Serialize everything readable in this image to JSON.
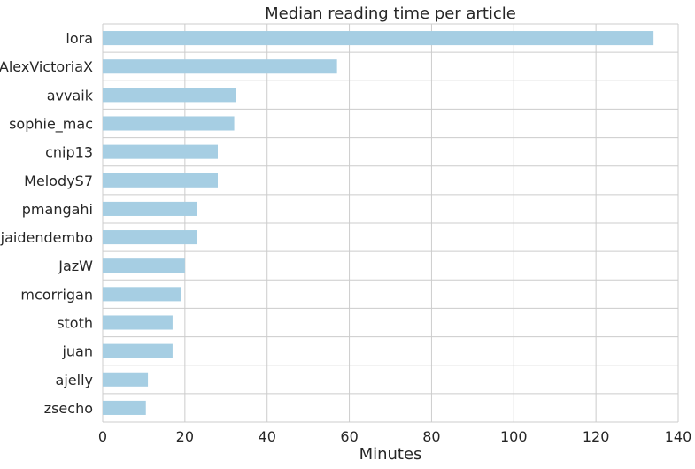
{
  "chart_data": {
    "type": "bar",
    "orientation": "horizontal",
    "title": "Median reading time per article",
    "xlabel": "Minutes",
    "ylabel": "",
    "xlim": [
      0,
      140
    ],
    "xticks": [
      "0",
      "20",
      "40",
      "60",
      "80",
      "100",
      "120",
      "140"
    ],
    "grid": true,
    "bar_color": "#a6cee3",
    "categories": [
      "lora",
      "AlexVictoriaX",
      "avvaik",
      "sophie_mac",
      "cnip13",
      "MelodyS7",
      "pmangahi",
      "jaidendembo",
      "JazW",
      "mcorrigan",
      "stoth",
      "juan",
      "ajelly",
      "zsecho"
    ],
    "values": [
      134,
      57,
      32.5,
      32,
      28,
      28,
      23,
      23,
      20,
      19,
      17,
      17,
      11,
      10.5
    ]
  }
}
